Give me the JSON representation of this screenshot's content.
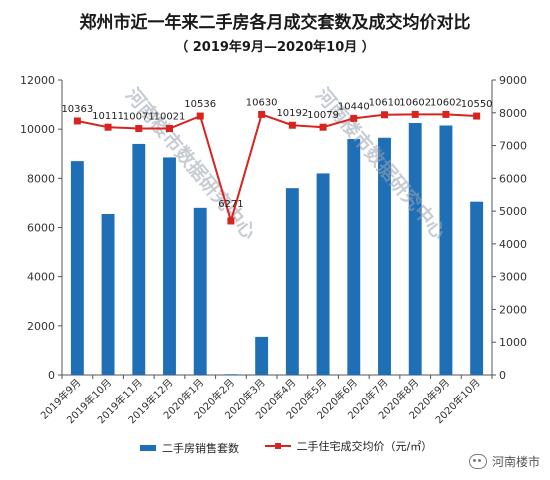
{
  "title": "郑州市近一年来二手房各月成交套数及成交均价对比",
  "subtitle": "（ 2019年9月—2020年10月 ）",
  "watermark": "河南楼市数据研究中心",
  "brand": "河南楼市",
  "brand_icon": "wechat-icon",
  "chart_data": {
    "type": "bar",
    "categories": [
      "2019年9月",
      "2019年10月",
      "2019年11月",
      "2019年12月",
      "2020年1月",
      "2020年2月",
      "2020年3月",
      "2020年4月",
      "2020年5月",
      "2020年6月",
      "2020年7月",
      "2020年8月",
      "2020年9月",
      "2020年10月"
    ],
    "series": [
      {
        "name": "二手房销售套数",
        "type": "bar",
        "axis": "left",
        "color": "#1e6fb5",
        "values": [
          8700,
          6550,
          9400,
          8850,
          6800,
          30,
          1550,
          7600,
          8200,
          9600,
          9650,
          10250,
          10150,
          7050
        ]
      },
      {
        "name": "二手住宅成交均价（元/㎡）",
        "type": "line",
        "axis": "right",
        "color": "#d9231f",
        "values": [
          7750,
          7560,
          7520,
          7520,
          7900,
          4700,
          7950,
          7620,
          7560,
          7830,
          7940,
          7950,
          7950,
          7900
        ],
        "labels": [
          "10363",
          "10111",
          "10071",
          "10021",
          "10536",
          "6271",
          "10630",
          "10192",
          "10079",
          "10440",
          "10610",
          "10602",
          "10602",
          "10550"
        ]
      }
    ],
    "y_left": {
      "min": 0,
      "max": 12000,
      "ticks": [
        "0",
        "2000",
        "4000",
        "6000",
        "8000",
        "10000",
        "12000"
      ]
    },
    "y_right": {
      "min": 0,
      "max": 9000,
      "ticks": [
        "0",
        "1000",
        "2000",
        "3000",
        "4000",
        "5000",
        "6000",
        "7000",
        "8000",
        "9000"
      ]
    },
    "grid": false,
    "legend": "bottom"
  }
}
